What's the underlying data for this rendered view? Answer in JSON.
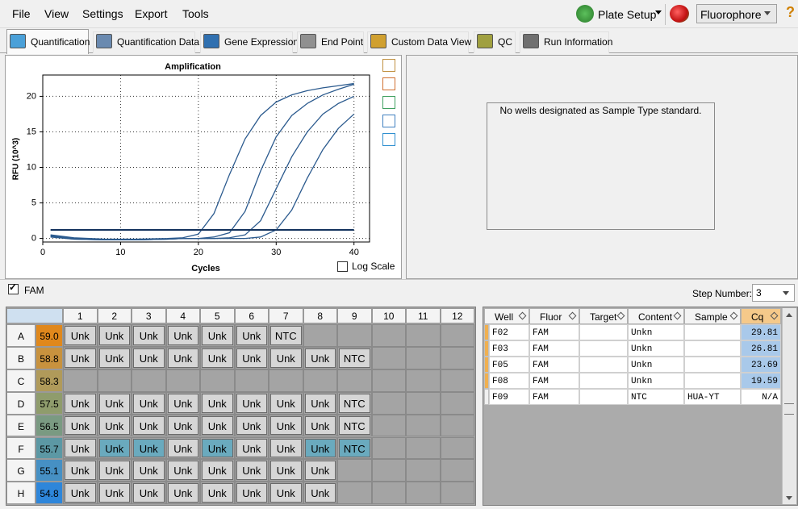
{
  "menu": [
    "File",
    "View",
    "Settings",
    "Export",
    "Tools"
  ],
  "toolbar": {
    "plate_setup": "Plate Setup",
    "fluorophore": "Fluorophore",
    "help": "?"
  },
  "tabs": [
    "Quantification",
    "Quantification Data",
    "Gene Expression",
    "End Point",
    "Custom Data View",
    "QC",
    "Run Information"
  ],
  "chart_data": {
    "type": "line",
    "title": "Amplification",
    "x_label": "Cycles",
    "y_label": "RFU (10^3)",
    "x": [
      1,
      4,
      8,
      12,
      16,
      18,
      20,
      22,
      24,
      26,
      28,
      30,
      32,
      34,
      36,
      38,
      40
    ],
    "series": [
      {
        "color": "#2b5a8e",
        "values": [
          0.5,
          0.1,
          -0.1,
          -0.1,
          0,
          0.1,
          0.6,
          3.5,
          9,
          14,
          17.3,
          19.2,
          20.2,
          20.8,
          21.2,
          21.5,
          21.8
        ]
      },
      {
        "color": "#2b5a8e",
        "values": [
          0.4,
          0,
          -0.2,
          -0.2,
          -0.1,
          0,
          0,
          0.2,
          0.8,
          3.8,
          9.5,
          14.3,
          17.3,
          19,
          20.2,
          21,
          21.7
        ]
      },
      {
        "color": "#2b5a8e",
        "values": [
          0.3,
          -0.1,
          -0.2,
          -0.2,
          -0.1,
          0,
          0,
          0,
          0.1,
          0.5,
          2.5,
          7,
          11.5,
          15,
          17.5,
          19,
          20
        ]
      },
      {
        "color": "#2b5a8e",
        "values": [
          0.2,
          -0.1,
          -0.2,
          -0.2,
          -0.1,
          0,
          0,
          0,
          0,
          0,
          0.2,
          1.2,
          4,
          8.5,
          12.5,
          15.5,
          17.5
        ]
      }
    ],
    "threshold": 1.2,
    "threshold_color": "#14335e",
    "xlim": [
      0,
      42
    ],
    "ylim": [
      -0.5,
      23
    ],
    "xticks": [
      0,
      10,
      20,
      30,
      40
    ],
    "yticks": [
      0,
      5,
      10,
      15,
      20
    ],
    "grid": true,
    "log_scale": false,
    "log_scale_label": "Log Scale"
  },
  "standard_message": "No wells designated as Sample Type standard.",
  "fluor_filter": {
    "label": "FAM",
    "checked": true
  },
  "step": {
    "label": "Step Number:",
    "value": "3"
  },
  "plate": {
    "columns": [
      "1",
      "2",
      "3",
      "4",
      "5",
      "6",
      "7",
      "8",
      "9",
      "10",
      "11",
      "12"
    ],
    "rows": [
      {
        "label": "A",
        "temp": "59.0",
        "color": "#e0881c",
        "wells": [
          "Unk",
          "Unk",
          "Unk",
          "Unk",
          "Unk",
          "Unk",
          "NTC",
          null,
          null,
          null,
          null,
          null
        ],
        "highlight": []
      },
      {
        "label": "B",
        "temp": "58.8",
        "color": "#c8923e",
        "wells": [
          "Unk",
          "Unk",
          "Unk",
          "Unk",
          "Unk",
          "Unk",
          "Unk",
          "Unk",
          "NTC",
          null,
          null,
          null
        ],
        "highlight": []
      },
      {
        "label": "C",
        "temp": "58.3",
        "color": "#b09a5a",
        "wells": [
          null,
          null,
          null,
          null,
          null,
          null,
          null,
          null,
          null,
          null,
          null,
          null
        ],
        "highlight": []
      },
      {
        "label": "D",
        "temp": "57.5",
        "color": "#8f9c6c",
        "wells": [
          "Unk",
          "Unk",
          "Unk",
          "Unk",
          "Unk",
          "Unk",
          "Unk",
          "Unk",
          "NTC",
          null,
          null,
          null
        ],
        "highlight": []
      },
      {
        "label": "E",
        "temp": "56.5",
        "color": "#7a9a82",
        "wells": [
          "Unk",
          "Unk",
          "Unk",
          "Unk",
          "Unk",
          "Unk",
          "Unk",
          "Unk",
          "NTC",
          null,
          null,
          null
        ],
        "highlight": []
      },
      {
        "label": "F",
        "temp": "55.7",
        "color": "#5c98a4",
        "wells": [
          "Unk",
          "Unk",
          "Unk",
          "Unk",
          "Unk",
          "Unk",
          "Unk",
          "Unk",
          "NTC",
          null,
          null,
          null
        ],
        "highlight": [
          "2",
          "3",
          "5",
          "8",
          "9"
        ]
      },
      {
        "label": "G",
        "temp": "55.1",
        "color": "#4690c4",
        "wells": [
          "Unk",
          "Unk",
          "Unk",
          "Unk",
          "Unk",
          "Unk",
          "Unk",
          "Unk",
          null,
          null,
          null,
          null
        ],
        "highlight": []
      },
      {
        "label": "H",
        "temp": "54.8",
        "color": "#2e86da",
        "wells": [
          "Unk",
          "Unk",
          "Unk",
          "Unk",
          "Unk",
          "Unk",
          "Unk",
          "Unk",
          null,
          null,
          null,
          null
        ],
        "highlight": []
      }
    ]
  },
  "results": {
    "headers": [
      "Well",
      "Fluor",
      "Target",
      "Content",
      "Sample",
      "Cq"
    ],
    "rows": [
      [
        "F02",
        "FAM",
        null,
        "Unkn",
        null,
        "29.81"
      ],
      [
        "F03",
        "FAM",
        null,
        "Unkn",
        null,
        "26.81"
      ],
      [
        "F05",
        "FAM",
        null,
        "Unkn",
        null,
        "23.69"
      ],
      [
        "F08",
        "FAM",
        null,
        "Unkn",
        null,
        "19.59"
      ],
      [
        "F09",
        "FAM",
        null,
        "NTC",
        "HUA-YT",
        "N/A"
      ]
    ]
  }
}
